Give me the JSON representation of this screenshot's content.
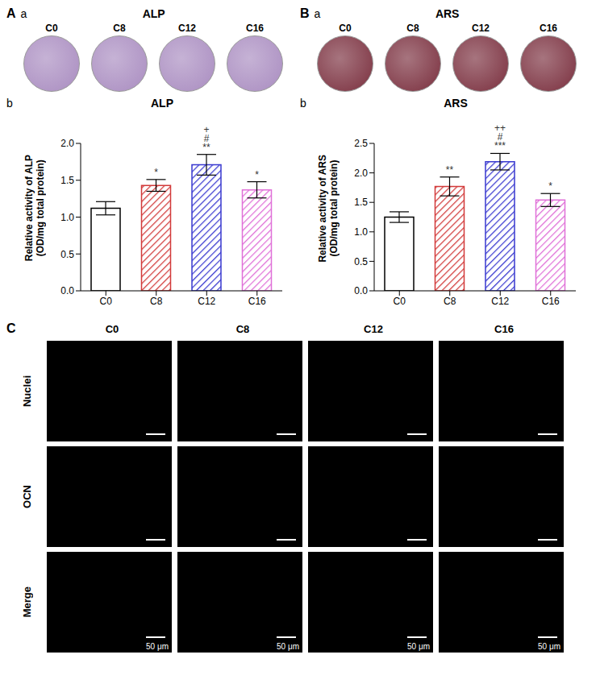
{
  "stain_panels": [
    {
      "panel": "A",
      "subpanel": "a",
      "title": "ALP",
      "labels": [
        "C0",
        "C8",
        "C12",
        "C16"
      ]
    },
    {
      "panel": "B",
      "subpanel": "a",
      "title": "ARS",
      "labels": [
        "C0",
        "C8",
        "C12",
        "C16"
      ]
    }
  ],
  "chart_data": [
    {
      "type": "bar",
      "panel": "A",
      "subpanel": "b",
      "title": "ALP",
      "ylabel": [
        "Relative activity of ALP",
        "(OD/mg total protein)"
      ],
      "categories": [
        "C0",
        "C8",
        "C12",
        "C16"
      ],
      "values": [
        1.12,
        1.43,
        1.71,
        1.37
      ],
      "error": [
        0.09,
        0.08,
        0.14,
        0.11
      ],
      "annotations": [
        [],
        [
          "*"
        ],
        [
          "+",
          "#",
          "**"
        ],
        [
          "*"
        ]
      ],
      "colors": [
        "#000000",
        "#d23a3a",
        "#3a3ad0",
        "#e070d8"
      ],
      "ylim": [
        0,
        2
      ],
      "yticks": [
        {
          "value": 0,
          "label": "0.0"
        },
        {
          "value": 0.5,
          "label": "0.5"
        },
        {
          "value": 1,
          "label": "1.0"
        },
        {
          "value": 1.5,
          "label": "1.5"
        },
        {
          "value": 2,
          "label": "2.0"
        }
      ],
      "grid": false
    },
    {
      "type": "bar",
      "panel": "B",
      "subpanel": "b",
      "title": "ARS",
      "ylabel": [
        "Relative activity of ARS",
        "(OD/mg total protein)"
      ],
      "categories": [
        "C0",
        "C8",
        "C12",
        "C16"
      ],
      "values": [
        1.25,
        1.77,
        2.19,
        1.54
      ],
      "error": [
        0.09,
        0.16,
        0.14,
        0.11
      ],
      "annotations": [
        [],
        [
          "**"
        ],
        [
          "++",
          "#",
          "***"
        ],
        [
          "*"
        ]
      ],
      "colors": [
        "#000000",
        "#d23a3a",
        "#3a3ad0",
        "#e070d8"
      ],
      "ylim": [
        0,
        2.5
      ],
      "yticks": [
        {
          "value": 0,
          "label": "0.0"
        },
        {
          "value": 0.5,
          "label": "0.5"
        },
        {
          "value": 1,
          "label": "1.0"
        },
        {
          "value": 1.5,
          "label": "1.5"
        },
        {
          "value": 2,
          "label": "2.0"
        },
        {
          "value": 2.5,
          "label": "2.5"
        }
      ],
      "grid": false
    }
  ],
  "fluorescence": {
    "panel": "C",
    "columns": [
      "C0",
      "C8",
      "C12",
      "C16"
    ],
    "rows": [
      "Nuclei",
      "OCN",
      "Merge"
    ],
    "scale_bar": "50 μm"
  }
}
